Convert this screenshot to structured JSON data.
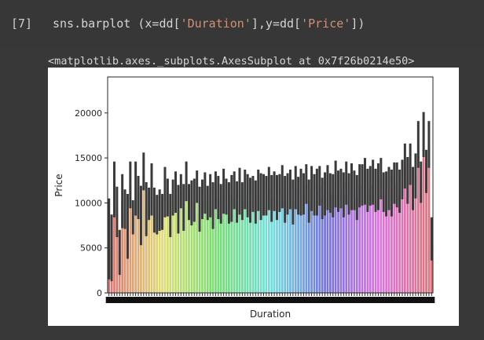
{
  "cell": {
    "prompt": "[7]",
    "code": {
      "p1": "sns.barplot (x=dd[",
      "s1": "'Duration'",
      "p2": "],y=dd[",
      "s2": "'Price'",
      "p3": "])"
    },
    "output_text": "<matplotlib.axes._subplots.AxesSubplot at 0x7f26b0214e50>"
  },
  "colors": {
    "background": "#383838",
    "figure_background": "#ffffff",
    "string_literal": "#ce9178",
    "error_bar": "#3a3a3a"
  },
  "chart_data": {
    "type": "bar",
    "title": "",
    "xlabel": "Duration",
    "ylabel": "Price",
    "ylim": [
      0,
      24000
    ],
    "yticks": [
      0,
      5000,
      10000,
      15000,
      20000
    ],
    "ytick_labels": [
      "0",
      "5000",
      "10000",
      "15000",
      "20000"
    ],
    "x_tick_labels_note": "overlapping unreadable duration labels",
    "palette": "husl",
    "series": [
      {
        "values": [
          6000,
          5000,
          11500,
          9000,
          4500,
          10200,
          9300,
          7400,
          12000,
          8400,
          11600,
          10600,
          8600,
          13500,
          9300,
          9900,
          11500,
          9200,
          8700,
          9200,
          9000,
          11200,
          10600,
          8600,
          10600,
          11200,
          9300,
          11300,
          9500,
          12400,
          10100,
          10000,
          10300,
          11800,
          9300,
          10400,
          11100,
          10000,
          10800,
          9700,
          11400,
          10600,
          9900,
          11300,
          10700,
          10000,
          10500,
          11400,
          10100,
          11300,
          10200,
          11500,
          10800,
          10300,
          11000,
          10100,
          11400,
          10700,
          10900,
          10800,
          11600,
          10500,
          11300,
          10600,
          11100,
          11800,
          10400,
          11000,
          11500,
          10100,
          11700,
          10800,
          11200,
          11000,
          12100,
          10200,
          11600,
          10900,
          11200,
          11900,
          10500,
          11000,
          11700,
          11100,
          10800,
          12100,
          11300,
          11600,
          10900,
          12200,
          11000,
          11800,
          11400,
          10600,
          11900,
          12000,
          12400,
          11400,
          11900,
          12300,
          11400,
          11800,
          12700,
          11200,
          11000,
          11600,
          11100,
          12200,
          12000,
          11300,
          12600,
          14100,
          12500,
          14300,
          11600,
          13000,
          16500,
          12300,
          17600,
          13500,
          16500,
          6000
        ],
        "errors": [
          4500,
          3700,
          3100,
          2800,
          2500,
          3000,
          2200,
          3600,
          2600,
          1900,
          3000,
          2400,
          3300,
          2100,
          3000,
          1800,
          2900,
          2500,
          2200,
          2300,
          2000,
          2800,
          2100,
          2400,
          2000,
          2300,
          2700,
          1900,
          2600,
          2200,
          2000,
          2500,
          2400,
          1800,
          2500,
          2200,
          2300,
          1900,
          2400,
          2600,
          2100,
          2400,
          2200,
          2500,
          2000,
          2300,
          2600,
          2100,
          2300,
          2600,
          2100,
          2200,
          2400,
          2500,
          2000,
          2400,
          2300,
          2600,
          2300,
          2200,
          2400,
          2600,
          2200,
          2500,
          2100,
          2400,
          2600,
          2300,
          2200,
          2500,
          2400,
          2100,
          2600,
          2300,
          2200,
          2400,
          2500,
          2300,
          2600,
          2200,
          2300,
          2400,
          2500,
          2200,
          2400,
          2600,
          2300,
          2200,
          2500,
          2400,
          2300,
          2600,
          2200,
          2500,
          2400,
          2300,
          2600,
          2400,
          2200,
          2500,
          2400,
          2600,
          2300,
          2200,
          2500,
          2400,
          2600,
          2300,
          2500,
          2400,
          2200,
          2500,
          2600,
          2300,
          2400,
          2500,
          2600,
          2300,
          2500,
          2400,
          2600,
          2400
        ]
      }
    ]
  }
}
